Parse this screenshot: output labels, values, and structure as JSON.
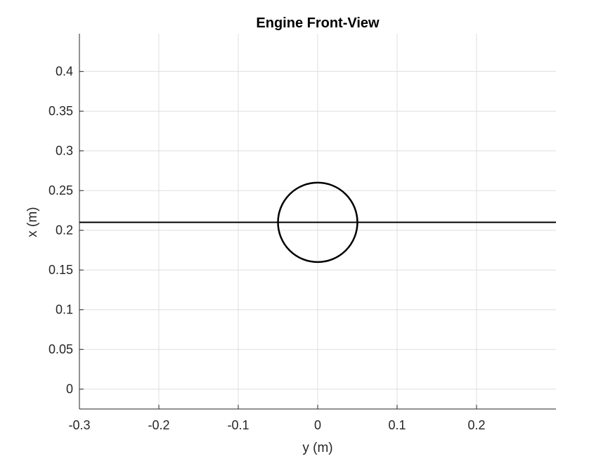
{
  "chart_data": {
    "type": "line",
    "title": "Engine Front-View",
    "xlabel": "y (m)",
    "ylabel": "x (m)",
    "xlim": [
      -0.3,
      0.3
    ],
    "ylim": [
      -0.025,
      0.4475
    ],
    "xticks": [
      -0.3,
      -0.2,
      -0.1,
      0,
      0.1,
      0.2
    ],
    "xtick_labels": [
      "-0.3",
      "-0.2",
      "-0.1",
      "0",
      "0.1",
      "0.2"
    ],
    "yticks": [
      0,
      0.05,
      0.1,
      0.15,
      0.2,
      0.25,
      0.3,
      0.35,
      0.4
    ],
    "ytick_labels": [
      "0",
      "0.05",
      "0.1",
      "0.15",
      "0.2",
      "0.25",
      "0.3",
      "0.35",
      "0.4"
    ],
    "grid": true,
    "line_color": "#000000",
    "series": [
      {
        "kind": "line",
        "x": [
          -0.3,
          0.3
        ],
        "y": [
          0.21,
          0.21
        ]
      },
      {
        "kind": "circle",
        "center": [
          0,
          0.21
        ],
        "radius": 0.05
      }
    ]
  }
}
